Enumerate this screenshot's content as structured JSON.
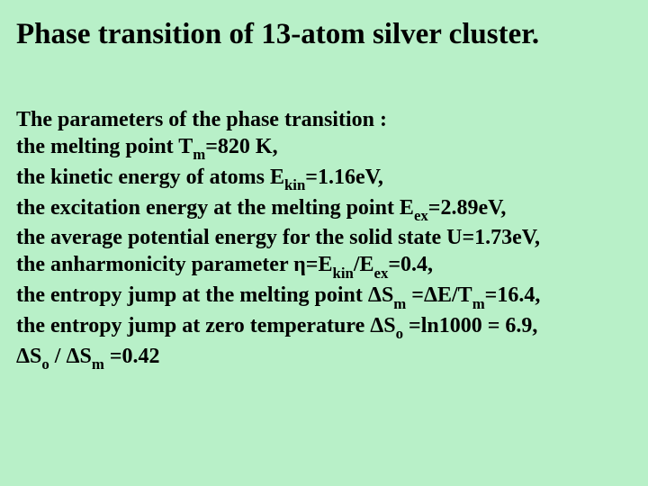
{
  "background_color": "#b8f0c8",
  "text_color": "#000000",
  "font_family": "Times New Roman",
  "title_fontsize": 33,
  "body_fontsize": 24,
  "title": "Phase transition of 13-atom silver cluster.",
  "p0": "The parameters of the phase transition :",
  "p1_a": "the melting point T",
  "p1_sub": "m",
  "p1_b": "=820 K,",
  "p2_a": "the kinetic energy of atoms E",
  "p2_sub": "kin",
  "p2_b": "=1.16eV,",
  "p3_a": "the excitation energy at the melting point E",
  "p3_sub": "ex",
  "p3_b": "=2.89eV,",
  "p4": "the average potential energy for the solid state U=1.73eV,",
  "p5_a": "the anharmonicity parameter η=E",
  "p5_sub1": "kin",
  "p5_b": "/E",
  "p5_sub2": "ex",
  "p5_c": "=0.4,",
  "p6_a": "the entropy jump at the melting point ΔS",
  "p6_sub1": "m",
  "p6_b": " =ΔE/T",
  "p6_sub2": "m",
  "p6_c": "=16.4,",
  "p7_a": "the entropy jump at zero temperature ΔS",
  "p7_sub": "o",
  "p7_b": " =ln1000 = 6.9,",
  "p8_a": "ΔS",
  "p8_sub1": "o",
  "p8_b": " / ΔS",
  "p8_sub2": "m",
  "p8_c": " =0.42"
}
